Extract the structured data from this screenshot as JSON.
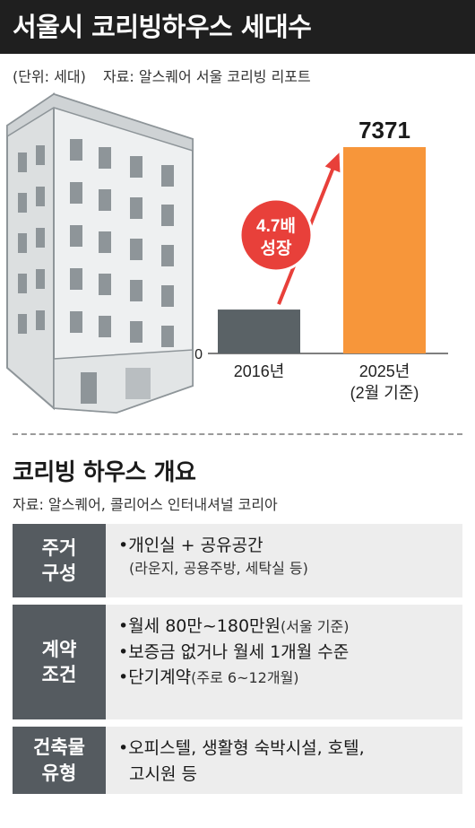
{
  "header": {
    "title": "서울시 코리빙하우스 세대수"
  },
  "meta": {
    "unit": "(단위: 세대)",
    "source": "자료: 알스퀘어 서울 코리빙 리포트"
  },
  "chart_data": {
    "type": "bar",
    "categories": [
      "2016년",
      "2025년"
    ],
    "category_sublabels": [
      "",
      "(2월 기준)"
    ],
    "values": [
      1568,
      7371
    ],
    "value_labels": [
      "",
      "7371"
    ],
    "colors": [
      "#5a6266",
      "#f7963a"
    ],
    "ylim": [
      0,
      7371
    ],
    "baseline_label": "0",
    "annotation": {
      "line1": "4.7배",
      "line2": "성장",
      "color": "#e8403a"
    },
    "title": "",
    "xlabel": "",
    "ylabel": ""
  },
  "overview": {
    "title": "코리빙 하우스 개요",
    "source": "자료: 알스퀘어, 콜리어스 인터내셔널 코리아",
    "rows": [
      {
        "label": [
          "주거",
          "구성"
        ],
        "items": [
          {
            "text": "•개인실 + 공유공간",
            "note": "(라운지, 공용주방, 세탁실 등)"
          }
        ]
      },
      {
        "label": [
          "계약",
          "조건"
        ],
        "items": [
          {
            "text": "•월세 80만~180만원",
            "sub": "(서울 기준)"
          },
          {
            "text": "•보증금 없거나 월세 1개월 수준"
          },
          {
            "text": "•단기계약",
            "sub": "(주로 6~12개월)"
          }
        ]
      },
      {
        "label": [
          "건축물",
          "유형"
        ],
        "items": [
          {
            "text": "•오피스텔, 생활형 숙박시설, 호텔,",
            "note2": "고시원 등"
          }
        ]
      }
    ]
  }
}
